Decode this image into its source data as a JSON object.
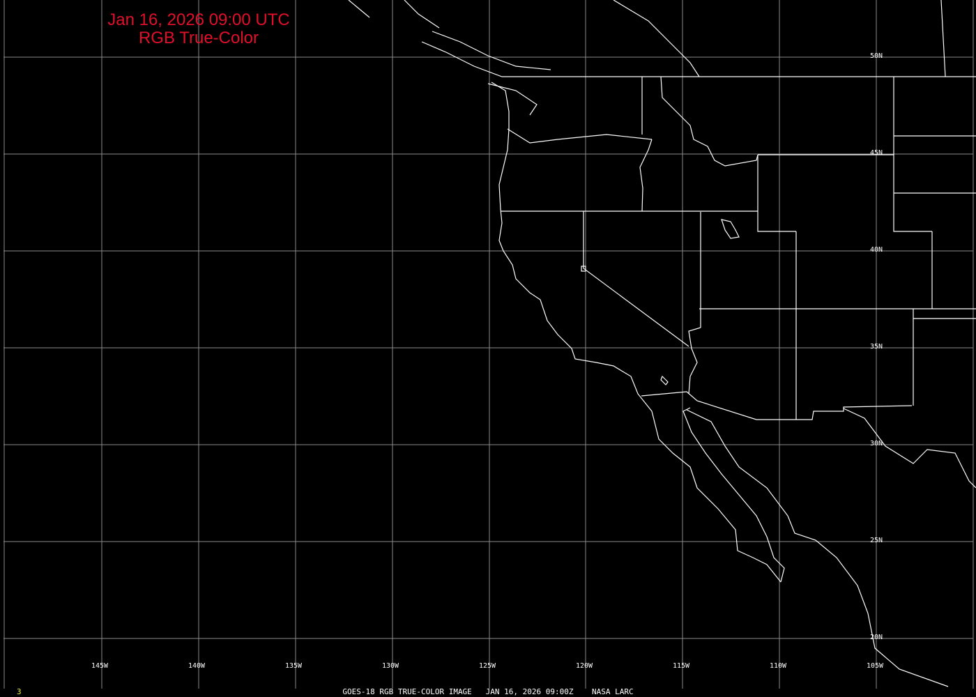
{
  "header": {
    "datetime": "Jan 16, 2026 09:00 UTC",
    "product": "RGB True-Color"
  },
  "footer": {
    "caption": "GOES-18 RGB TRUE-COLOR IMAGE   JAN 16, 2026 09:00Z    NASA LARC",
    "frame_number": "3"
  },
  "longitude_labels": [
    "145W",
    "140W",
    "135W",
    "130W",
    "125W",
    "120W",
    "115W",
    "110W",
    "105W"
  ],
  "latitude_labels": [
    "50N",
    "45N",
    "40N",
    "35N",
    "30N",
    "25N",
    "20N"
  ],
  "colors": {
    "title": "#e0102a",
    "grid": "#8c8c8c",
    "coastline": "#ffffff",
    "frame_number": "#e8e84a"
  }
}
